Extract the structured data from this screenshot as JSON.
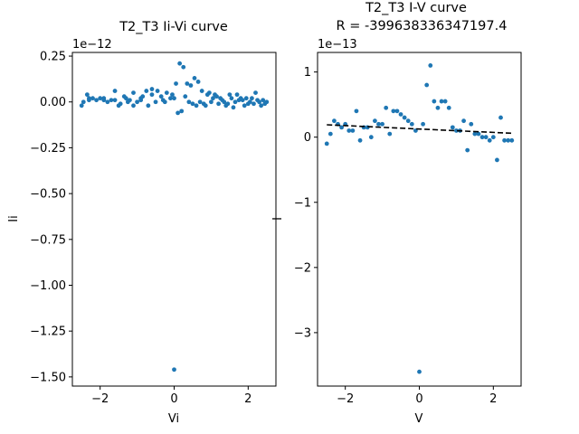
{
  "chart_data": [
    {
      "type": "scatter",
      "title": "T2_T3 Ii-Vi curve",
      "xlabel": "Vi",
      "ylabel": "Ii",
      "offset_label": "1e−12",
      "xlim": [
        -2.75,
        2.75
      ],
      "ylim": [
        -1.55,
        0.27
      ],
      "xticks": [
        -2,
        0,
        2
      ],
      "xtick_labels": [
        "−2",
        "0",
        "2"
      ],
      "yticks": [
        0.25,
        0.0,
        -0.25,
        -0.5,
        -0.75,
        -1.0,
        -1.25,
        -1.5
      ],
      "ytick_labels": [
        "0.25",
        "0.00",
        "−0.25",
        "−0.50",
        "−0.75",
        "−1.00",
        "−1.25",
        "−1.50"
      ],
      "point_color": "#1f77b4",
      "series": [
        {
          "x": [
            -2.5,
            -2.45,
            -2.35,
            -2.3,
            -2.2,
            -2.1,
            -2.0,
            -1.9,
            -1.8,
            -1.7,
            -1.6,
            -1.5,
            -1.45,
            -1.35,
            -1.25,
            -1.2,
            -1.1,
            -1.0,
            -0.9,
            -0.85,
            -0.75,
            -0.7,
            -0.6,
            -0.5,
            -0.45,
            -0.35,
            -0.25,
            -0.2,
            -0.1,
            0.0,
            0.05,
            0.1,
            0.15,
            0.2,
            0.25,
            0.3,
            0.35,
            0.4,
            0.45,
            0.5,
            0.55,
            0.6,
            0.65,
            0.7,
            0.75,
            0.8,
            0.85,
            0.9,
            0.95,
            1.0,
            1.05,
            1.1,
            1.15,
            1.2,
            1.25,
            1.3,
            1.35,
            1.4,
            1.45,
            1.5,
            1.55,
            1.6,
            1.65,
            1.7,
            1.75,
            1.8,
            1.85,
            1.9,
            1.95,
            2.0,
            2.05,
            2.1,
            2.15,
            2.2,
            2.25,
            2.3,
            2.35,
            2.4,
            2.45,
            2.5,
            -0.6,
            -0.9,
            -1.1,
            -1.3,
            -2.3,
            -0.3,
            -0.05,
            0.0,
            -1.9,
            -1.6
          ],
          "y": [
            -0.02,
            0.0,
            0.04,
            0.01,
            0.02,
            0.01,
            0.02,
            0.01,
            0.0,
            0.01,
            0.06,
            -0.02,
            -0.01,
            0.03,
            0.0,
            0.01,
            0.05,
            0.0,
            0.02,
            0.03,
            0.06,
            -0.02,
            0.07,
            0.0,
            0.06,
            0.03,
            0.0,
            0.05,
            0.02,
            -1.46,
            0.1,
            -0.06,
            0.21,
            -0.05,
            0.19,
            0.03,
            0.1,
            0.0,
            0.09,
            -0.01,
            0.13,
            -0.02,
            0.11,
            0.0,
            0.06,
            -0.01,
            -0.02,
            0.04,
            0.05,
            0.0,
            0.02,
            0.04,
            0.03,
            -0.01,
            0.02,
            0.01,
            0.0,
            -0.02,
            -0.01,
            0.04,
            0.02,
            -0.03,
            0.0,
            0.04,
            0.01,
            0.02,
            0.01,
            -0.02,
            0.02,
            -0.01,
            0.0,
            0.02,
            -0.01,
            0.05,
            0.01,
            0.0,
            -0.02,
            0.01,
            -0.01,
            0.0,
            0.04,
            0.01,
            -0.02,
            0.02,
            0.02,
            0.01,
            0.04,
            0.02,
            0.02,
            0.01
          ]
        }
      ]
    },
    {
      "type": "scatter",
      "title": "T2_T3 I-V curve",
      "subtitle": "R = -399638336347197.4",
      "xlabel": "V",
      "ylabel": "I",
      "offset_label": "1e−13",
      "xlim": [
        -2.75,
        2.75
      ],
      "ylim": [
        -3.82,
        1.3
      ],
      "xticks": [
        -2,
        0,
        2
      ],
      "xtick_labels": [
        "−2",
        "0",
        "2"
      ],
      "yticks": [
        1,
        0,
        -1,
        -2,
        -3
      ],
      "ytick_labels": [
        "1",
        "0",
        "−1",
        "−2",
        "−3"
      ],
      "point_color": "#1f77b4",
      "fit_line": {
        "x": [
          -2.5,
          2.5
        ],
        "y": [
          0.19,
          0.06
        ],
        "color": "#000000",
        "style": "dashed"
      },
      "series": [
        {
          "x": [
            -2.5,
            -2.4,
            -2.3,
            -2.2,
            -2.1,
            -2.0,
            -1.9,
            -1.8,
            -1.7,
            -1.6,
            -1.5,
            -1.4,
            -1.3,
            -1.2,
            -1.1,
            -1.0,
            -0.9,
            -0.8,
            -0.7,
            -0.6,
            -0.5,
            -0.4,
            -0.3,
            -0.2,
            -0.1,
            0.0,
            0.1,
            0.2,
            0.3,
            0.4,
            0.5,
            0.6,
            0.7,
            0.8,
            0.9,
            1.0,
            1.1,
            1.2,
            1.3,
            1.4,
            1.5,
            1.6,
            1.7,
            1.8,
            1.9,
            2.0,
            2.1,
            2.2,
            2.3,
            2.4,
            2.5
          ],
          "y": [
            -0.1,
            0.05,
            0.25,
            0.2,
            0.15,
            0.2,
            0.1,
            0.1,
            0.4,
            -0.05,
            0.15,
            0.15,
            0.0,
            0.25,
            0.2,
            0.2,
            0.45,
            0.05,
            0.4,
            0.4,
            0.35,
            0.3,
            0.25,
            0.2,
            0.1,
            -3.6,
            0.2,
            0.8,
            1.1,
            0.55,
            0.45,
            0.55,
            0.55,
            0.45,
            0.15,
            0.1,
            0.1,
            0.25,
            -0.2,
            0.2,
            0.05,
            0.05,
            0.0,
            0.0,
            -0.05,
            0.0,
            -0.35,
            0.3,
            -0.05,
            -0.05,
            -0.05
          ]
        }
      ]
    }
  ]
}
